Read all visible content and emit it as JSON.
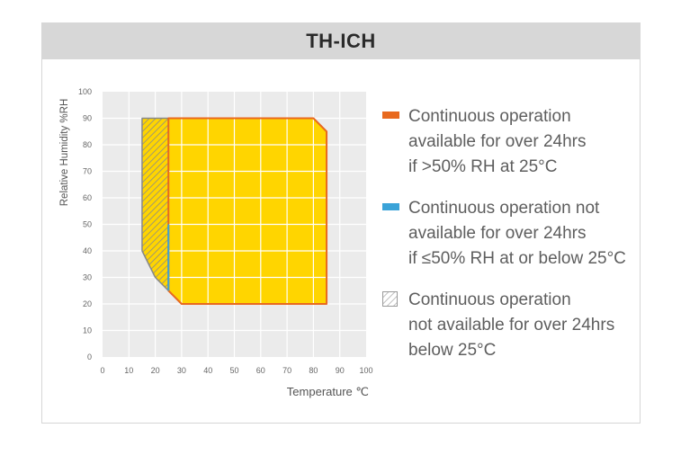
{
  "header": {
    "title": "TH-ICH"
  },
  "legend": {
    "items": [
      {
        "kind": "orange",
        "color": "#e8691e",
        "lines": [
          "Continuous operation",
          "available for over 24hrs",
          "if >50% RH at 25°C"
        ]
      },
      {
        "kind": "blue",
        "color": "#3aa3d8",
        "lines": [
          "Continuous operation not",
          "available for over 24hrs",
          "if ≤50% RH at or below 25°C"
        ]
      },
      {
        "kind": "hatch",
        "color": "#9a9a9a",
        "lines": [
          "Continuous operation",
          "not available for over 24hrs",
          "below 25°C"
        ]
      }
    ]
  },
  "chart_data": {
    "type": "area",
    "xlabel": "Temperature ℃",
    "ylabel": "Relative Humidity %RH",
    "xlim": [
      0,
      100
    ],
    "ylim": [
      0,
      100
    ],
    "xticks": [
      0,
      10,
      20,
      30,
      40,
      50,
      60,
      70,
      80,
      90,
      100
    ],
    "yticks": [
      0,
      10,
      20,
      30,
      40,
      50,
      60,
      70,
      80,
      90,
      100
    ],
    "grid": true,
    "regions": [
      {
        "name": "available",
        "fill": "#ffd500",
        "stroke": "#e8691e",
        "points": [
          [
            25,
            90
          ],
          [
            80,
            90
          ],
          [
            85,
            85
          ],
          [
            85,
            20
          ],
          [
            30,
            20
          ],
          [
            25,
            25
          ]
        ]
      },
      {
        "name": "not-available-below-25C",
        "fill": "#ffd500",
        "stroke": "#888888",
        "hatched": true,
        "points": [
          [
            15,
            90
          ],
          [
            25,
            90
          ],
          [
            25,
            25
          ],
          [
            20,
            30
          ],
          [
            15,
            40
          ]
        ]
      }
    ],
    "blue_segment": [
      [
        25,
        25
      ],
      [
        25,
        50
      ]
    ],
    "colors": {
      "orange": "#e8691e",
      "blue": "#3aa3d8",
      "yellow": "#ffd500",
      "plot_bg": "#ebebeb"
    }
  }
}
